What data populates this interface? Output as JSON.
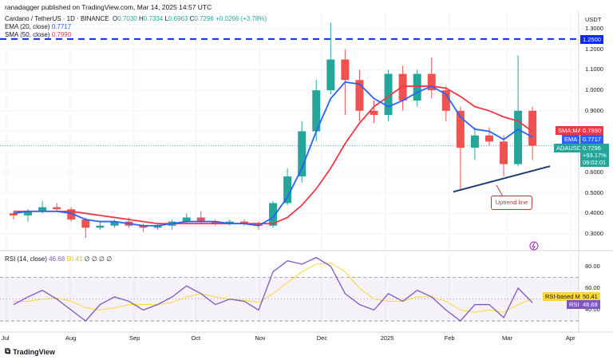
{
  "header": {
    "published": "ranadagger published on TradingView.com, Mar 14, 2025 14:57 UTC",
    "symbol": "Cardano / TetherUS · 1D · BINANCE",
    "open_label": "O",
    "open": "0.7030",
    "high_label": "H",
    "high": "0.7334",
    "low_label": "L",
    "low": "0.6963",
    "close_label": "C",
    "close": "0.7296",
    "change": "+0.0266 (+3.78%)",
    "ema_label": "EMA (20, close)",
    "ema_value": "0.7717",
    "sma_label": "SMA (50, close)",
    "sma_value": "0.7990",
    "rsi_label": "RSI (14, close)",
    "rsi_value": "46.68",
    "rsi_ma_value": "50.41",
    "rsi_extra": "∅ ∅ ∅ ∅"
  },
  "badges": {
    "currency": "USDT",
    "resistance": "1.2500",
    "sma_name": "SMA:MA",
    "sma": "0.7990",
    "ema_name": "EMA",
    "ema": "0.7717",
    "price_name": "ADAUSDT",
    "price": "0.7296",
    "price_change": "+93.17%",
    "countdown": "09:02:01",
    "rsi_ma_name": "RSI-based MA",
    "rsi_ma": "50.41",
    "rsi_name": "RSI",
    "rsi": "46.68"
  },
  "annotation": "Uptrend line",
  "footer": "TradingView",
  "colors": {
    "up": "#26a69a",
    "down": "#ef5350",
    "ema": "#2962ff",
    "sma": "#f23645",
    "rsi": "#7e57c2",
    "rsi_ma": "#fdd835",
    "trend": "#1c3a70",
    "resistance": "#0d2cf0"
  },
  "chart_data": [
    {
      "type": "candlestick",
      "title": "Cardano / TetherUS · 1D · BINANCE",
      "ylim": [
        0.25,
        1.35
      ],
      "ytick_labels": [
        "1.3000",
        "1.2000",
        "1.1000",
        "1.0000",
        "0.9000",
        "0.6000",
        "0.5000",
        "0.4000",
        "0.3000"
      ],
      "yticks": [
        1.3,
        1.2,
        1.1,
        1.0,
        0.9,
        0.6,
        0.5,
        0.4,
        0.3
      ],
      "xtick_labels": [
        "Jul",
        "Aug",
        "Sep",
        "Oct",
        "Nov",
        "Dec",
        "2025",
        "Feb",
        "Mar",
        "Apr"
      ],
      "xticks": [
        "2024-07-01",
        "2024-08-01",
        "2024-09-01",
        "2024-10-01",
        "2024-11-01",
        "2024-12-01",
        "2025-01-01",
        "2025-02-01",
        "2025-03-01",
        "2025-04-01"
      ],
      "grid": true,
      "candles": [
        [
          "2024-07-01",
          0.4,
          0.41,
          0.37,
          0.39
        ],
        [
          "2024-07-08",
          0.39,
          0.42,
          0.36,
          0.41
        ],
        [
          "2024-07-15",
          0.41,
          0.46,
          0.4,
          0.43
        ],
        [
          "2024-07-22",
          0.43,
          0.45,
          0.41,
          0.42
        ],
        [
          "2024-07-29",
          0.42,
          0.43,
          0.36,
          0.37
        ],
        [
          "2024-08-05",
          0.37,
          0.38,
          0.28,
          0.33
        ],
        [
          "2024-08-12",
          0.33,
          0.36,
          0.32,
          0.34
        ],
        [
          "2024-08-19",
          0.34,
          0.37,
          0.33,
          0.36
        ],
        [
          "2024-08-26",
          0.36,
          0.38,
          0.33,
          0.34
        ],
        [
          "2024-09-02",
          0.34,
          0.35,
          0.31,
          0.33
        ],
        [
          "2024-09-09",
          0.33,
          0.35,
          0.32,
          0.34
        ],
        [
          "2024-09-16",
          0.34,
          0.37,
          0.32,
          0.36
        ],
        [
          "2024-09-23",
          0.36,
          0.4,
          0.35,
          0.38
        ],
        [
          "2024-09-30",
          0.38,
          0.41,
          0.35,
          0.36
        ],
        [
          "2024-10-07",
          0.36,
          0.37,
          0.34,
          0.35
        ],
        [
          "2024-10-14",
          0.35,
          0.37,
          0.34,
          0.36
        ],
        [
          "2024-10-21",
          0.36,
          0.37,
          0.34,
          0.35
        ],
        [
          "2024-10-28",
          0.35,
          0.36,
          0.32,
          0.34
        ],
        [
          "2024-11-04",
          0.34,
          0.46,
          0.33,
          0.45
        ],
        [
          "2024-11-11",
          0.45,
          0.62,
          0.44,
          0.58
        ],
        [
          "2024-11-18",
          0.58,
          0.85,
          0.55,
          0.8
        ],
        [
          "2024-11-25",
          0.8,
          1.05,
          0.75,
          1.0
        ],
        [
          "2024-12-02",
          1.0,
          1.33,
          0.98,
          1.15
        ],
        [
          "2024-12-09",
          1.15,
          1.2,
          0.88,
          1.05
        ],
        [
          "2024-12-16",
          1.05,
          1.1,
          0.85,
          0.9
        ],
        [
          "2024-12-23",
          0.9,
          0.95,
          0.84,
          0.88
        ],
        [
          "2024-12-30",
          0.88,
          1.1,
          0.85,
          1.08
        ],
        [
          "2025-01-06",
          1.08,
          1.12,
          0.9,
          0.95
        ],
        [
          "2025-01-13",
          0.95,
          1.1,
          0.92,
          1.08
        ],
        [
          "2025-01-20",
          1.08,
          1.16,
          0.96,
          1.0
        ],
        [
          "2025-01-27",
          1.0,
          1.02,
          0.85,
          0.9
        ],
        [
          "2025-02-03",
          0.9,
          0.92,
          0.51,
          0.72
        ],
        [
          "2025-02-10",
          0.72,
          0.82,
          0.66,
          0.78
        ],
        [
          "2025-02-17",
          0.78,
          0.82,
          0.73,
          0.75
        ],
        [
          "2025-02-24",
          0.75,
          0.78,
          0.58,
          0.64
        ],
        [
          "2025-03-03",
          0.64,
          1.17,
          0.63,
          0.9
        ],
        [
          "2025-03-10",
          0.9,
          0.92,
          0.66,
          0.7296
        ]
      ],
      "series": [
        {
          "name": "EMA (20, close)",
          "values": [
            0.4,
            0.41,
            0.41,
            0.41,
            0.4,
            0.37,
            0.36,
            0.36,
            0.35,
            0.34,
            0.34,
            0.35,
            0.36,
            0.36,
            0.36,
            0.35,
            0.35,
            0.34,
            0.38,
            0.48,
            0.62,
            0.8,
            0.96,
            1.04,
            1.03,
            0.96,
            0.92,
            0.95,
            0.99,
            1.02,
            0.98,
            0.87,
            0.81,
            0.8,
            0.76,
            0.81,
            0.7717
          ]
        },
        {
          "name": "SMA (50, close)",
          "values": [
            0.41,
            0.41,
            0.41,
            0.41,
            0.41,
            0.4,
            0.39,
            0.38,
            0.37,
            0.36,
            0.35,
            0.35,
            0.35,
            0.35,
            0.35,
            0.35,
            0.35,
            0.35,
            0.35,
            0.38,
            0.44,
            0.52,
            0.62,
            0.74,
            0.84,
            0.92,
            0.97,
            1.02,
            1.02,
            1.02,
            1.01,
            0.97,
            0.92,
            0.9,
            0.87,
            0.85,
            0.799
          ]
        }
      ],
      "horizontal_lines": [
        {
          "value": 1.25,
          "style": "dashed"
        }
      ],
      "trend_lines": [
        {
          "name": "Uptrend line",
          "from": [
            "2025-02-03",
            0.505
          ],
          "to": [
            "2025-03-22",
            0.63
          ]
        }
      ]
    },
    {
      "type": "line",
      "title": "RSI (14, close)",
      "ylim": [
        20,
        95
      ],
      "ytick_labels": [
        "80.00",
        "60.00",
        "40.00"
      ],
      "yticks": [
        80,
        60,
        40
      ],
      "band": [
        30,
        70
      ],
      "series": [
        {
          "name": "RSI",
          "values": [
            45,
            52,
            58,
            50,
            40,
            30,
            45,
            52,
            48,
            40,
            45,
            52,
            62,
            55,
            45,
            50,
            48,
            40,
            75,
            85,
            82,
            88,
            80,
            55,
            45,
            40,
            55,
            48,
            58,
            52,
            40,
            30,
            45,
            45,
            33,
            60,
            46.68
          ]
        },
        {
          "name": "RSI-based MA",
          "values": [
            48,
            48,
            50,
            51,
            48,
            42,
            40,
            42,
            45,
            45,
            45,
            47,
            52,
            55,
            52,
            50,
            49,
            47,
            55,
            65,
            75,
            82,
            83,
            75,
            60,
            50,
            48,
            48,
            52,
            52,
            48,
            40,
            38,
            40,
            38,
            45,
            50.41
          ]
        }
      ]
    }
  ]
}
